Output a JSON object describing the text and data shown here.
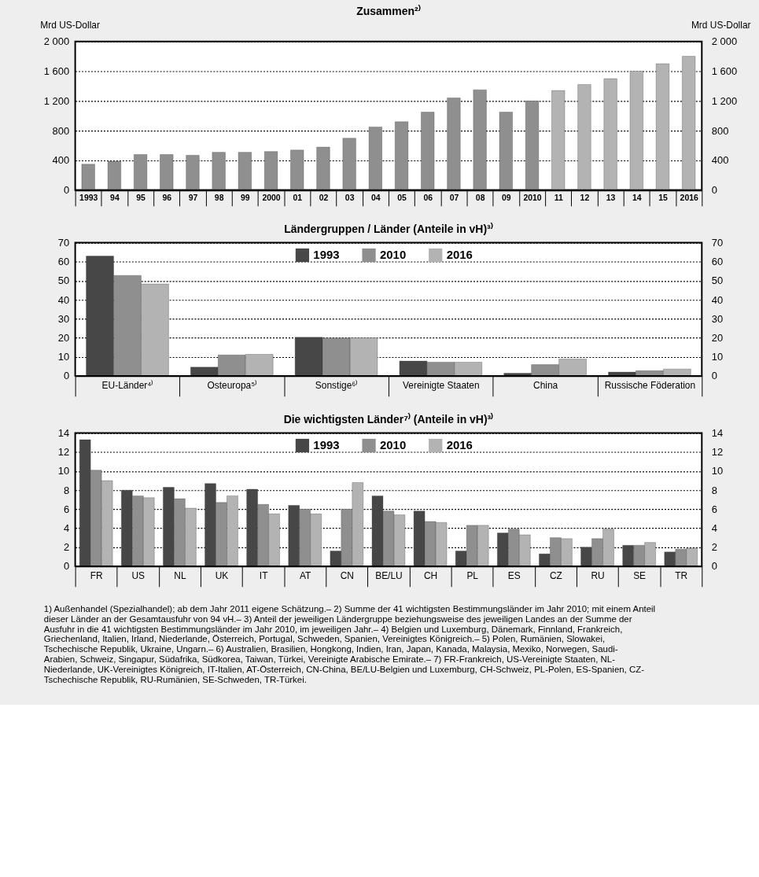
{
  "chart_data": [
    {
      "type": "bar",
      "title": "Zusammen²⁾",
      "ylabel": "Mrd US-Dollar",
      "y2label": "Mrd US-Dollar",
      "categories": [
        "1993",
        "94",
        "95",
        "96",
        "97",
        "98",
        "99",
        "2000",
        "01",
        "02",
        "03",
        "04",
        "05",
        "06",
        "07",
        "08",
        "09",
        "2010",
        "11",
        "12",
        "13",
        "14",
        "15",
        "2016"
      ],
      "values": [
        350,
        390,
        480,
        480,
        470,
        510,
        510,
        520,
        540,
        580,
        700,
        850,
        920,
        1050,
        1240,
        1350,
        1050,
        1200,
        1340,
        1420,
        1500,
        1600,
        1700,
        1800
      ],
      "colors": [
        "#8f8f8f",
        "#8f8f8f",
        "#8f8f8f",
        "#8f8f8f",
        "#8f8f8f",
        "#8f8f8f",
        "#8f8f8f",
        "#8f8f8f",
        "#8f8f8f",
        "#8f8f8f",
        "#8f8f8f",
        "#8f8f8f",
        "#8f8f8f",
        "#8f8f8f",
        "#8f8f8f",
        "#8f8f8f",
        "#8f8f8f",
        "#8f8f8f",
        "#b3b3b3",
        "#b3b3b3",
        "#b3b3b3",
        "#b3b3b3",
        "#b3b3b3",
        "#b3b3b3"
      ],
      "ylim": [
        0,
        2000
      ],
      "yticks": [
        0,
        400,
        800,
        {
          "value": 1200,
          "label": "1 200"
        },
        {
          "value": 1600,
          "label": "1 600"
        },
        {
          "value": 2000,
          "label": "2 000"
        }
      ],
      "y2lim": [
        0,
        2000
      ],
      "y2ticks": [
        0,
        400,
        800,
        {
          "value": 1200,
          "label": "1 200"
        },
        {
          "value": 1600,
          "label": "1 600"
        },
        {
          "value": 2000,
          "label": "2 000"
        }
      ],
      "grid": "y",
      "legend": false
    },
    {
      "type": "bar",
      "title": "Ländergruppen / Länder (Anteile in vH)³⁾",
      "categories": [
        "EU-Länder⁴⁾",
        "Osteuropa⁵⁾",
        "Sonstige⁶⁾",
        "Vereinigte Staaten",
        "China",
        "Russische Föderation"
      ],
      "series": [
        {
          "name": "1993",
          "color": "#474747",
          "values": [
            63,
            4.6,
            20.3,
            7.8,
            1.4,
            2
          ]
        },
        {
          "name": "2010",
          "color": "#8f8f8f",
          "values": [
            52.8,
            11,
            19.9,
            7.2,
            5.9,
            2.7
          ]
        },
        {
          "name": "2016",
          "color": "#b3b3b3",
          "values": [
            48.3,
            11.3,
            20,
            7.2,
            8.8,
            3.6
          ]
        }
      ],
      "ylim": [
        0,
        70
      ],
      "yticks": [
        0,
        10,
        20,
        30,
        40,
        50,
        60,
        70
      ],
      "y2lim": [
        0,
        70
      ],
      "y2ticks": [
        0,
        10,
        20,
        30,
        40,
        50,
        60,
        70
      ],
      "grid": "y",
      "legend": "top"
    },
    {
      "type": "bar",
      "title": "Die wichtigsten Länder⁷⁾ (Anteile in vH)³⁾",
      "categories": [
        "FR",
        "US",
        "NL",
        "UK",
        "IT",
        "AT",
        "CN",
        "BE/LU",
        "CH",
        "PL",
        "ES",
        "CZ",
        "RU",
        "SE",
        "TR"
      ],
      "series": [
        {
          "name": "1993",
          "color": "#474747",
          "values": [
            13.3,
            8,
            8.3,
            8.7,
            8.1,
            6.4,
            1.6,
            7.4,
            5.8,
            1.6,
            3.5,
            1.3,
            2,
            2.2,
            1.5
          ]
        },
        {
          "name": "2010",
          "color": "#8f8f8f",
          "values": [
            10.1,
            7.4,
            7.1,
            6.7,
            6.5,
            6,
            6,
            5.8,
            4.7,
            4.3,
            3.9,
            3,
            2.9,
            2.2,
            1.8
          ]
        },
        {
          "name": "2016",
          "color": "#b3b3b3",
          "values": [
            9,
            7.2,
            6.1,
            7.4,
            5.5,
            5.5,
            8.8,
            5.4,
            4.6,
            4.3,
            3.3,
            2.9,
            3.9,
            2.5,
            1.9
          ]
        }
      ],
      "ylim": [
        0,
        14
      ],
      "yticks": [
        0,
        2,
        4,
        6,
        8,
        10,
        12,
        14
      ],
      "y2lim": [
        0,
        14
      ],
      "y2ticks": [
        0,
        2,
        4,
        6,
        8,
        10,
        12,
        14
      ],
      "grid": "y",
      "legend": "top",
      "annotations": [
        "1) Außenhandel (Spezialhandel); ab dem Jahr 2011 eigene Schätzung.– 2) Summe der 41 wichtigsten Bestimmungsländer im Jahr 2010; mit einem Anteil dieser Länder an der Gesamtausfuhr von 94 vH.– 3) Anteil der jeweiligen Ländergruppe beziehungsweise des jeweiligen Landes an der Summe der Ausfuhr in die 41 wichtigsten Bestimmungsländer im Jahr 2010, im jeweiligen Jahr.– 4) Belgien und Luxemburg, Dänemark, Finnland, Frankreich, Griechenland, Italien, Irland, Niederlande, Österreich, Portugal, Schweden, Spanien, Vereinigtes Königreich.– 5) Polen, Rumänien, Slowakei, Tschechische Republik, Ukraine, Ungarn.– 6) Australien, Brasilien, Hongkong, Indien, Iran, Japan, Kanada, Malaysia, Mexiko, Norwegen, Saudi-Arabien, Schweiz, Singapur, Südafrika, Südkorea, Taiwan, Türkei, Vereinigte Arabische Emirate.– 7) FR-Frankreich, US-Vereinigte Staaten, NL-Niederlande, UK-Vereinigtes Königreich, IT-Italien, AT-Österreich, CN-China, BE/LU-Belgien und Luxemburg, CH-Schweiz, PL-Polen, ES-Spanien, CZ-Tschechische Republik, RU-Rumänien, SE-Schweden, TR-Türkei."
      ]
    }
  ]
}
